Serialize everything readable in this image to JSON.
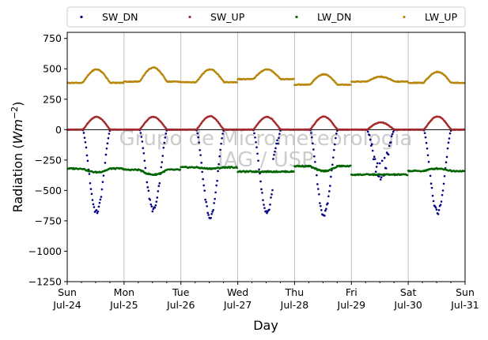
{
  "chart_data": {
    "type": "scatter",
    "xlabel": "Day",
    "ylabel_main": "Radiation (",
    "ylabel_unit": "Wm",
    "ylabel_exp": "−2",
    "ylabel_close": ")",
    "ylim": [
      -1250,
      800
    ],
    "yticks": [
      -1250,
      -1000,
      -750,
      -500,
      -250,
      0,
      250,
      500,
      750
    ],
    "ytick_labels": [
      "−1250",
      "−1000",
      "−750",
      "−500",
      "−250",
      "0",
      "250",
      "500",
      "750"
    ],
    "xlim_days": [
      0,
      7
    ],
    "xticks": [
      {
        "day": 0,
        "line1": "Sun",
        "line2": "Jul-24"
      },
      {
        "day": 1,
        "line1": "Mon",
        "line2": "Jul-25"
      },
      {
        "day": 2,
        "line1": "Tue",
        "line2": "Jul-26"
      },
      {
        "day": 3,
        "line1": "Wed",
        "line2": "Jul-27"
      },
      {
        "day": 4,
        "line1": "Thu",
        "line2": "Jul-28"
      },
      {
        "day": 5,
        "line1": "Fri",
        "line2": "Jul-29"
      },
      {
        "day": 6,
        "line1": "Sat",
        "line2": "Jul-30"
      },
      {
        "day": 7,
        "line1": "Sun",
        "line2": "Jul-31"
      }
    ],
    "grid": "vertical",
    "legend_placement": "top",
    "watermark_line1": "Grupo de Micrometeorologia",
    "watermark_line2": "IAG / USP",
    "series": [
      {
        "name": "SW_DN",
        "color": "#000080",
        "daily_min": [
          -680,
          -660,
          -720,
          -675,
          -700,
          -430,
          -680
        ],
        "note_peak_day_fraction": 0.58
      },
      {
        "name": "SW_UP",
        "color": "#a52a2a",
        "daily_max": [
          105,
          105,
          110,
          105,
          108,
          60,
          108
        ]
      },
      {
        "name": "LW_DN",
        "color": "#006400",
        "daily_values": [
          {
            "night": -320,
            "day": -350
          },
          {
            "night": -330,
            "day": -370
          },
          {
            "night": -310,
            "day": -320
          },
          {
            "night": -345,
            "day": -345
          },
          {
            "night": -300,
            "day": -340
          },
          {
            "night": -370,
            "day": -370
          },
          {
            "night": -340,
            "day": -320
          }
        ]
      },
      {
        "name": "LW_UP",
        "color": "#b8860b",
        "daily_values": [
          {
            "base": 385,
            "peak": 495
          },
          {
            "base": 395,
            "peak": 510
          },
          {
            "base": 390,
            "peak": 495
          },
          {
            "base": 415,
            "peak": 495
          },
          {
            "base": 370,
            "peak": 455
          },
          {
            "base": 395,
            "peak": 435
          },
          {
            "base": 385,
            "peak": 475
          }
        ]
      }
    ]
  }
}
